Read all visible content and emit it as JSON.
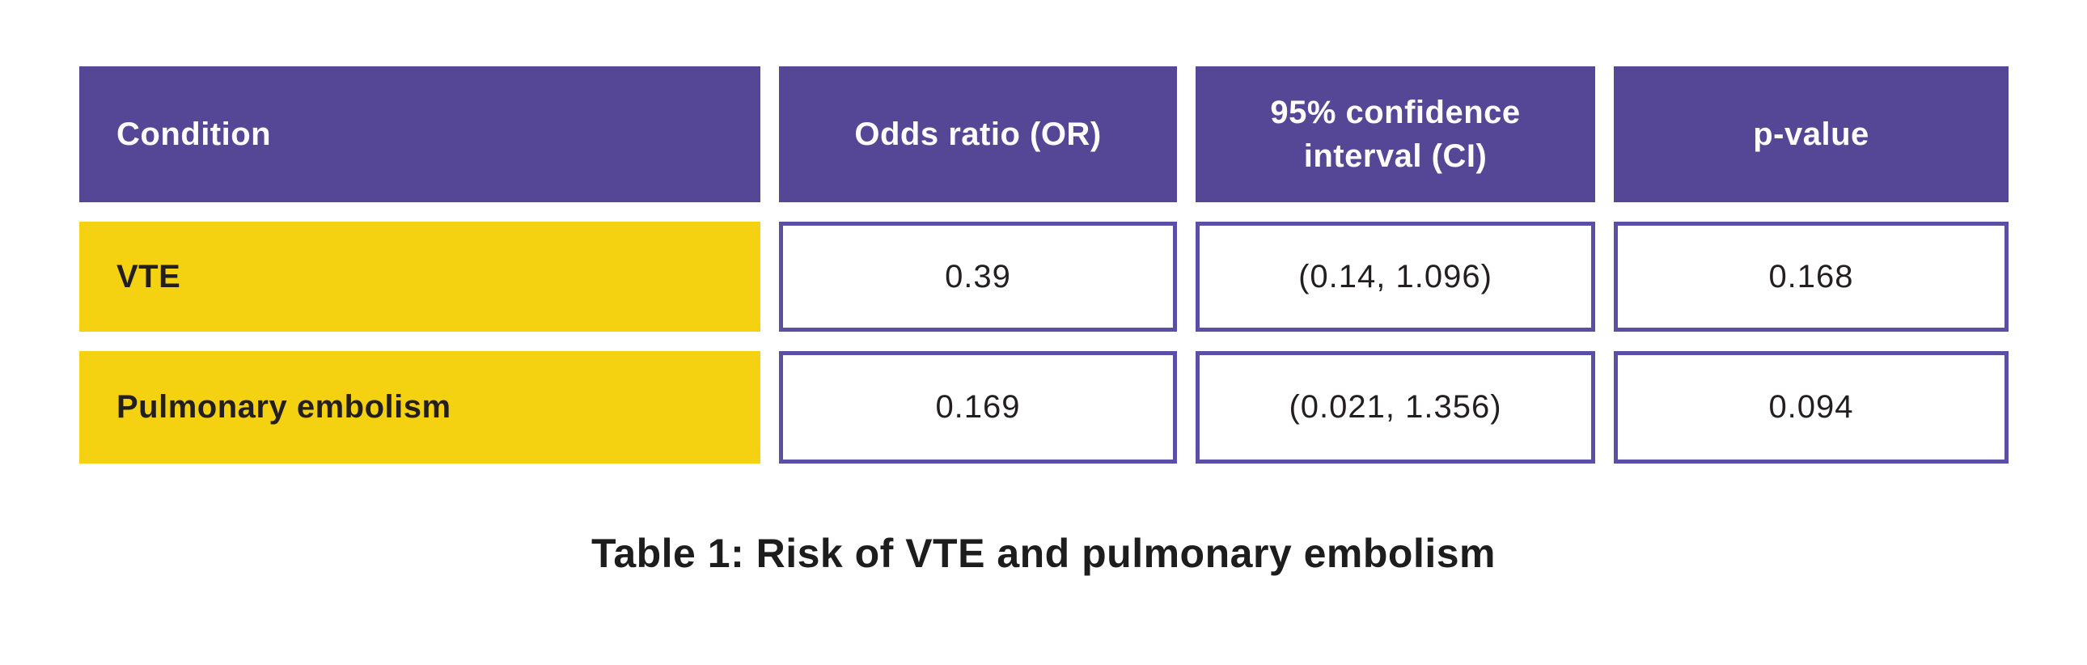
{
  "colors": {
    "header_bg": "#554795",
    "row_label_bg": "#F5D211",
    "value_box_border": "#5A4FA5",
    "header_text": "#FDFDFE",
    "body_text": "#231F20",
    "page_bg": "#FFFFFF"
  },
  "table": {
    "columns": {
      "condition": "Condition",
      "odds_ratio": "Odds ratio (OR)",
      "ci": "95% confidence interval (CI)",
      "p_value": "p-value"
    },
    "rows": [
      {
        "condition": "VTE",
        "odds_ratio": "0.39",
        "ci": "(0.14, 1.096)",
        "p_value": "0.168"
      },
      {
        "condition": "Pulmonary embolism",
        "odds_ratio": "0.169",
        "ci": "(0.021, 1.356)",
        "p_value": "0.094"
      }
    ]
  },
  "caption": "Table 1: Risk of VTE and pulmonary embolism",
  "chart_data": {
    "type": "table",
    "title": "Table 1: Risk of VTE and pulmonary embolism",
    "columns": [
      "Condition",
      "Odds ratio (OR)",
      "95% confidence interval (CI)",
      "p-value"
    ],
    "rows": [
      [
        "VTE",
        "0.39",
        "(0.14, 1.096)",
        "0.168"
      ],
      [
        "Pulmonary embolism",
        "0.169",
        "(0.021, 1.356)",
        "0.094"
      ]
    ]
  }
}
